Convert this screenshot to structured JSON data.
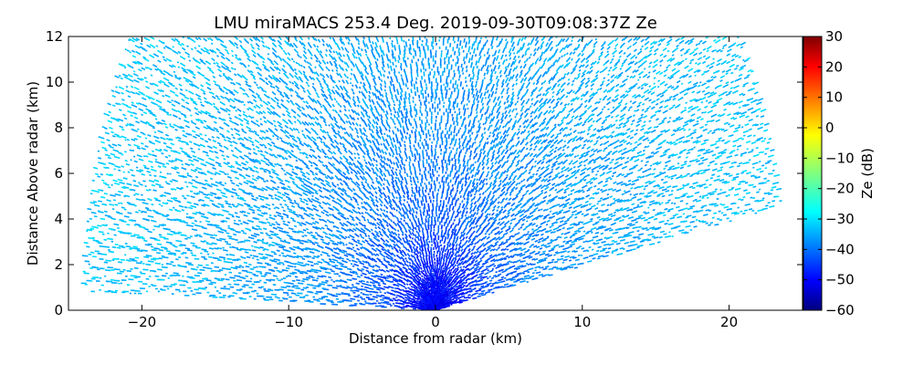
{
  "chart_data": {
    "type": "heatmap",
    "subtype": "rhi-radar-scan",
    "title": "LMU miraMACS 253.4 Deg. 2019-09-30T09:08:37Z  Ze",
    "xlabel": "Distance from radar (km)",
    "ylabel": "Distance Above radar  (km)",
    "xlim": [
      -25,
      25
    ],
    "ylim": [
      0,
      12
    ],
    "xticks": [
      -20,
      -10,
      0,
      10,
      20
    ],
    "yticks": [
      0,
      2,
      4,
      6,
      8,
      10,
      12
    ],
    "grid": false,
    "scan": {
      "max_range_km": 24,
      "elevation_start_deg": 11,
      "elevation_end_deg": 178,
      "description": "sparse reflectivity returns across full scan sector"
    },
    "reflectivity_profile": [
      {
        "range_km": 0,
        "ze_db": -51
      },
      {
        "range_km": 2,
        "ze_db": -46
      },
      {
        "range_km": 4,
        "ze_db": -41
      },
      {
        "range_km": 7,
        "ze_db": -37
      },
      {
        "range_km": 12,
        "ze_db": -34
      },
      {
        "range_km": 18,
        "ze_db": -32
      },
      {
        "range_km": 24,
        "ze_db": -31
      }
    ],
    "colorbar": {
      "label": "Ze (dB)",
      "min": -60,
      "max": 30,
      "ticks": [
        -60,
        -50,
        -40,
        -30,
        -20,
        -10,
        0,
        10,
        20,
        30
      ],
      "colormap": "jet"
    }
  }
}
